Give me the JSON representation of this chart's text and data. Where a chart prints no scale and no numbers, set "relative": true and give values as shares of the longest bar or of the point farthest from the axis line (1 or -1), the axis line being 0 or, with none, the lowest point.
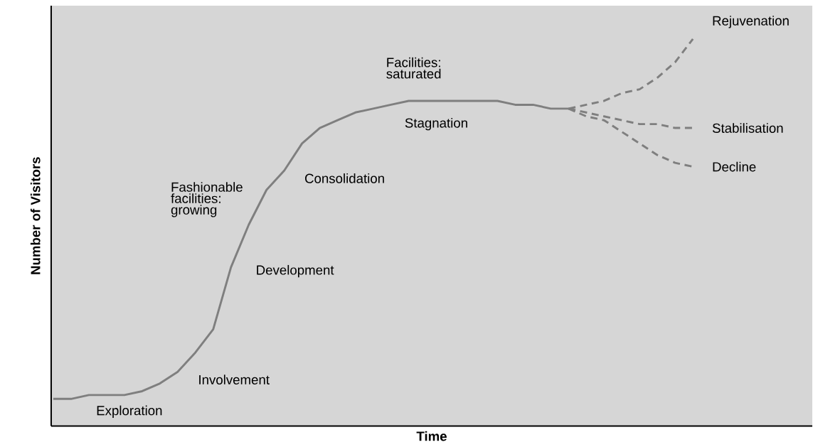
{
  "chart_data": {
    "type": "line",
    "relative": true,
    "xlabel": "Time",
    "ylabel": "Number of Visitors",
    "categories": [
      null,
      null,
      null,
      null,
      null,
      null,
      null,
      null,
      null,
      null,
      null,
      null,
      null,
      null,
      null,
      null,
      null,
      null,
      null,
      null,
      null,
      null,
      null,
      null,
      null,
      null,
      null,
      null,
      null,
      null,
      null,
      null,
      null,
      null,
      null,
      null,
      null
    ],
    "series": [
      {
        "color": "#7f7f7f",
        "line_style": "solid",
        "values": [
          0.07,
          0.07,
          0.08,
          0.08,
          0.08,
          0.09,
          0.11,
          0.14,
          0.19,
          0.25,
          0.41,
          0.52,
          0.61,
          0.66,
          0.73,
          0.77,
          0.79,
          0.81,
          0.82,
          0.83,
          0.84,
          0.84,
          0.84,
          0.84,
          0.84,
          0.84,
          0.83,
          0.83,
          0.82,
          0.82,
          null,
          null,
          null,
          null,
          null,
          null,
          null
        ]
      },
      {
        "name": "Rejuvenation",
        "color": "#7f7f7f",
        "line_style": "dashed",
        "values": [
          null,
          null,
          null,
          null,
          null,
          null,
          null,
          null,
          null,
          null,
          null,
          null,
          null,
          null,
          null,
          null,
          null,
          null,
          null,
          null,
          null,
          null,
          null,
          null,
          null,
          null,
          null,
          null,
          null,
          0.82,
          0.83,
          0.84,
          0.86,
          0.87,
          0.9,
          0.94,
          1
        ]
      },
      {
        "name": "Stabilisation",
        "color": "#7f7f7f",
        "line_style": "dashed",
        "values": [
          null,
          null,
          null,
          null,
          null,
          null,
          null,
          null,
          null,
          null,
          null,
          null,
          null,
          null,
          null,
          null,
          null,
          null,
          null,
          null,
          null,
          null,
          null,
          null,
          null,
          null,
          null,
          null,
          null,
          0.82,
          0.81,
          0.8,
          0.79,
          0.78,
          0.78,
          0.77,
          0.77
        ]
      },
      {
        "name": "Decline",
        "color": "#7f7f7f",
        "line_style": "dashed",
        "values": [
          null,
          null,
          null,
          null,
          null,
          null,
          null,
          null,
          null,
          null,
          null,
          null,
          null,
          null,
          null,
          null,
          null,
          null,
          null,
          null,
          null,
          null,
          null,
          null,
          null,
          null,
          null,
          null,
          null,
          0.82,
          0.8,
          0.79,
          0.76,
          0.73,
          0.7,
          0.68,
          0.67
        ]
      }
    ],
    "annotations": [
      "Exploration",
      "Involvement",
      "Development",
      "Consolidation",
      "Stagnation",
      "Fashionable facilities: growing",
      "Facilities: saturated"
    ]
  }
}
